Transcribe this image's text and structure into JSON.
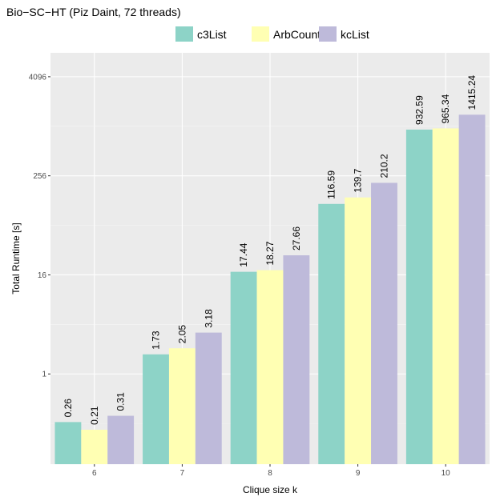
{
  "chart_data": {
    "type": "bar",
    "title": "Bio−SC−HT (Piz Daint, 72 threads)",
    "xlabel": "Clique size k",
    "ylabel": "Total Runtime [s]",
    "y_scale": "log2",
    "ylim": [
      0.08,
      8000
    ],
    "yticks": [
      1,
      16,
      256,
      4096
    ],
    "ytick_labels": [
      "1",
      "16",
      "256",
      "4096"
    ],
    "categories": [
      "6",
      "7",
      "8",
      "9",
      "10"
    ],
    "series": [
      {
        "name": "c3List",
        "color": "#8dd3c7",
        "values": [
          0.26,
          1.73,
          17.44,
          116.59,
          932.59
        ],
        "labels": [
          "0.26",
          "1.73",
          "17.44",
          "116.59",
          "932.59"
        ]
      },
      {
        "name": "ArbCount",
        "color": "#ffffb3",
        "values": [
          0.21,
          2.05,
          18.27,
          139.7,
          965.34
        ],
        "labels": [
          "0.21",
          "2.05",
          "18.27",
          "139.7",
          "965.34"
        ]
      },
      {
        "name": "kcList",
        "color": "#bebada",
        "values": [
          0.31,
          3.18,
          27.66,
          210.2,
          1415.24
        ],
        "labels": [
          "0.31",
          "3.18",
          "27.66",
          "210.2",
          "1415.24"
        ]
      }
    ],
    "legend_position": "top",
    "grid": true,
    "panel_background": "#ebebeb"
  }
}
